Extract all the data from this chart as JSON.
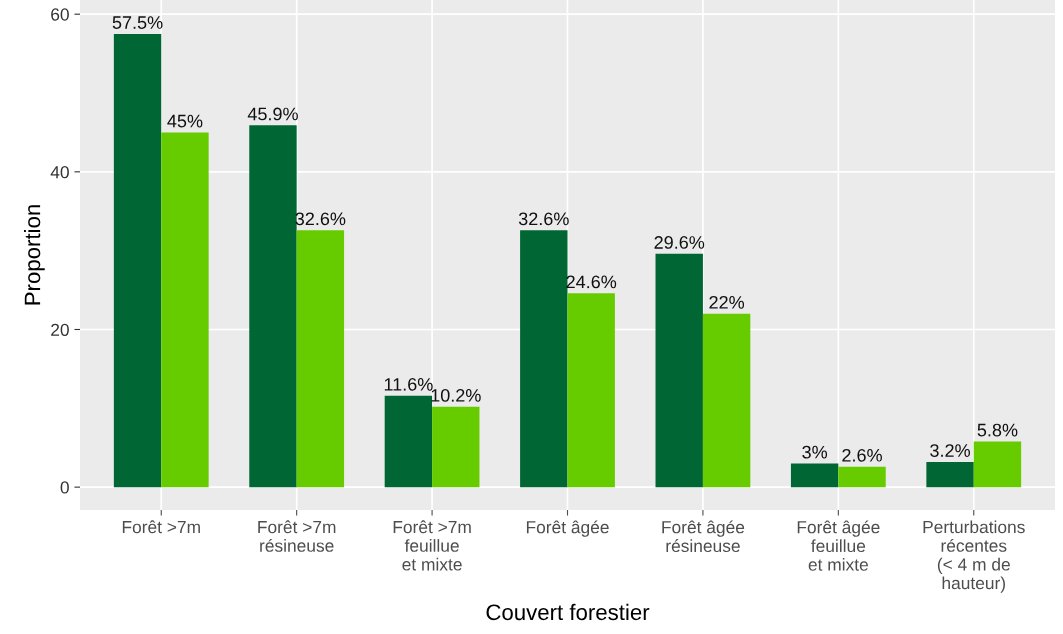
{
  "chart_data": {
    "type": "bar",
    "xlabel": "Couvert forestier",
    "ylabel": "Proportion",
    "categories": [
      "Forêt >7m",
      "Forêt >7m\nrésineuse",
      "Forêt >7m\nfeuillue\net mixte",
      "Forêt âgée",
      "Forêt âgée\nrésineuse",
      "Forêt âgée\nfeuillue\net mixte",
      "Perturbations\nrécentes\n(< 4 m de\nhauteur)"
    ],
    "series": [
      {
        "color": "#006633",
        "values": [
          57.5,
          45.9,
          11.6,
          32.6,
          29.6,
          3,
          3.2
        ],
        "value_labels": [
          "57.5%",
          "45.9%",
          "11.6%",
          "32.6%",
          "29.6%",
          "3%",
          "3.2%"
        ]
      },
      {
        "color": "#66cc00",
        "values": [
          45,
          32.6,
          10.2,
          24.6,
          22,
          2.6,
          5.8
        ],
        "value_labels": [
          "45%",
          "32.6%",
          "10.2%",
          "24.6%",
          "22%",
          "2.6%",
          "5.8%"
        ]
      }
    ],
    "ylim": [
      -2.9,
      61.8
    ],
    "yticks": [
      0,
      20,
      40,
      60
    ],
    "grid": true,
    "legend": false
  }
}
